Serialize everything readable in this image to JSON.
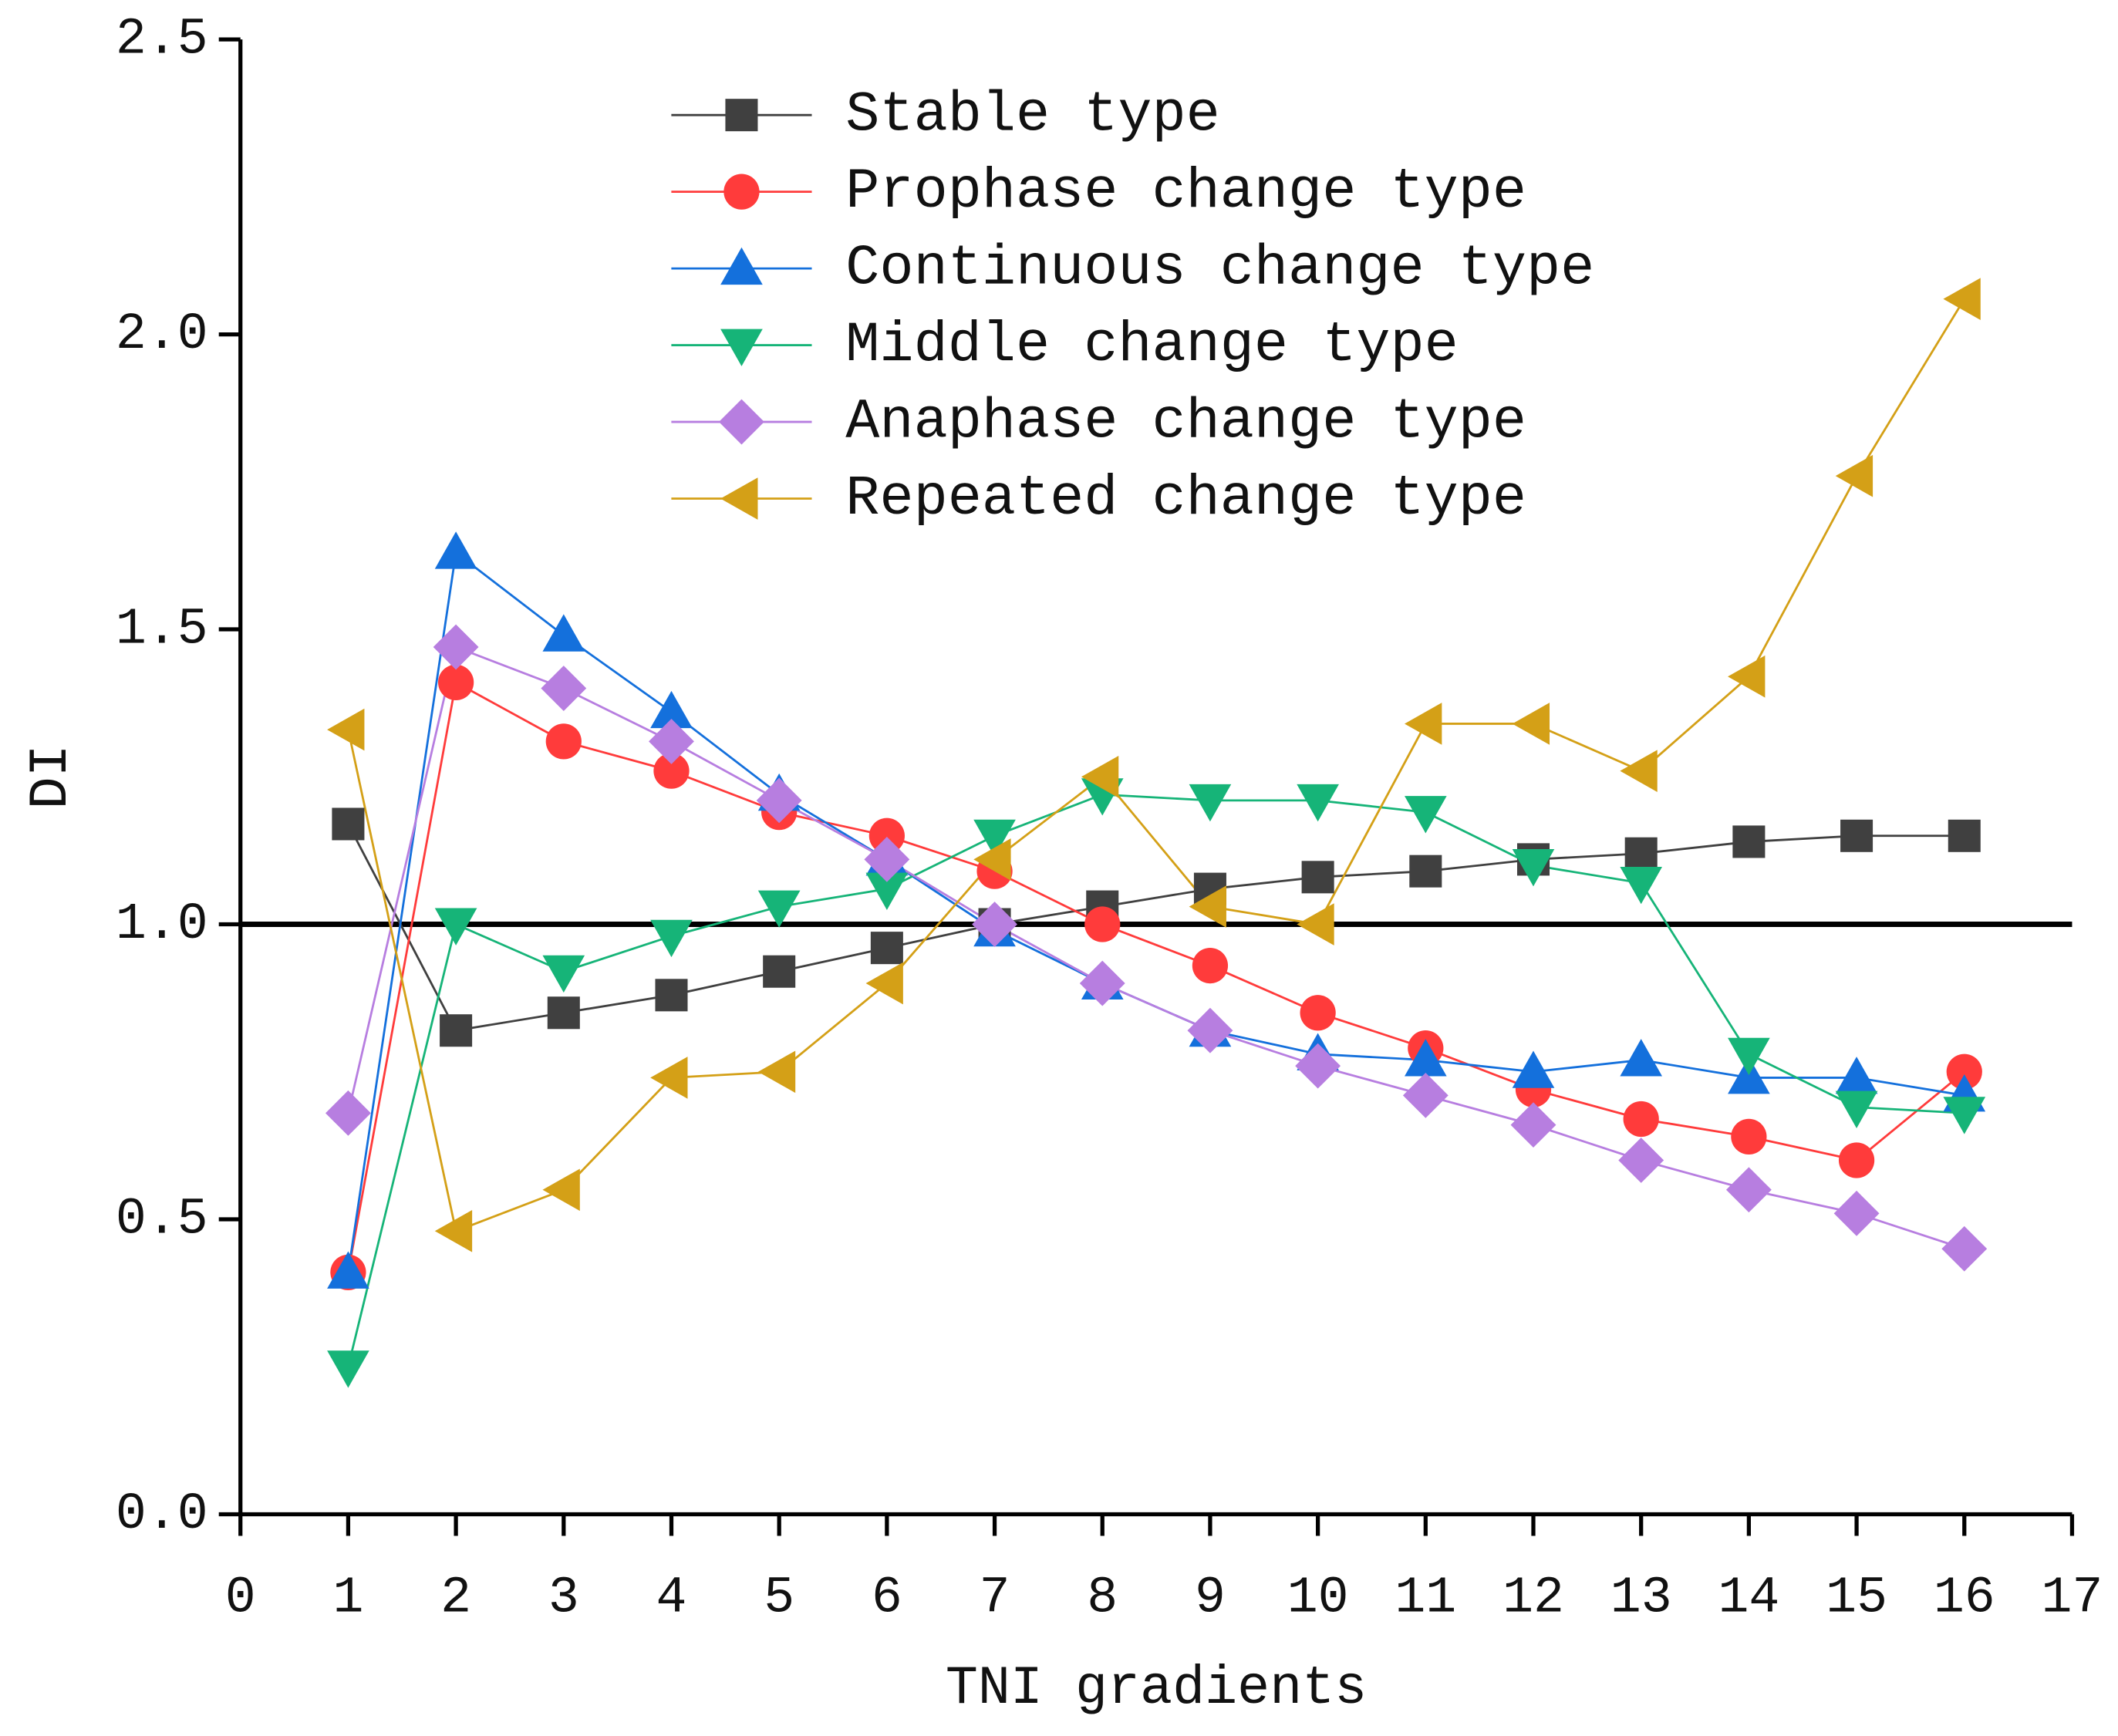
{
  "chart_data": {
    "type": "line",
    "x_label": "TNI gradients",
    "y_label": "DI",
    "x": [
      1,
      2,
      3,
      4,
      5,
      6,
      7,
      8,
      9,
      10,
      11,
      12,
      13,
      14,
      15,
      16
    ],
    "xlim": [
      0,
      17
    ],
    "xticks": [
      0,
      1,
      2,
      3,
      4,
      5,
      6,
      7,
      8,
      9,
      10,
      11,
      12,
      13,
      14,
      15,
      16,
      17
    ],
    "ylim": [
      0,
      2.5
    ],
    "yticks": [
      {
        "value": 0,
        "label": "0.0"
      },
      0.5,
      {
        "value": 1,
        "label": "1.0"
      },
      1.5,
      {
        "value": 2,
        "label": "2.0"
      },
      2.5
    ],
    "hline": 1,
    "grid": false,
    "legend": "upper center",
    "series": [
      {
        "name": "Stable type",
        "color": "#404040",
        "marker": "square",
        "values": [
          1.17,
          0.82,
          0.85,
          0.88,
          0.92,
          0.96,
          1.0,
          1.03,
          1.06,
          1.08,
          1.09,
          1.11,
          1.12,
          1.14,
          1.15,
          1.15
        ]
      },
      {
        "name": "Prophase change type",
        "color": "#ff3b3b",
        "marker": "circle",
        "values": [
          0.41,
          1.41,
          1.31,
          1.26,
          1.19,
          1.15,
          1.09,
          1.0,
          0.93,
          0.85,
          0.79,
          0.72,
          0.67,
          0.64,
          0.6,
          0.75
        ]
      },
      {
        "name": "Continuous change type",
        "color": "#1470dc",
        "marker": "triangle-up",
        "values": [
          0.41,
          1.63,
          1.49,
          1.36,
          1.22,
          1.11,
          0.99,
          0.9,
          0.82,
          0.78,
          0.77,
          0.75,
          0.77,
          0.74,
          0.74,
          0.71
        ]
      },
      {
        "name": "Middle change type",
        "color": "#16b478",
        "marker": "triangle-down",
        "values": [
          0.25,
          1.0,
          0.92,
          0.98,
          1.03,
          1.06,
          1.15,
          1.22,
          1.21,
          1.21,
          1.19,
          1.1,
          1.07,
          0.78,
          0.69,
          0.68
        ]
      },
      {
        "name": "Anaphase change type",
        "color": "#b77ee0",
        "marker": "diamond",
        "values": [
          0.68,
          1.47,
          1.4,
          1.31,
          1.21,
          1.11,
          1.0,
          0.9,
          0.82,
          0.76,
          0.71,
          0.66,
          0.6,
          0.55,
          0.51,
          0.45
        ]
      },
      {
        "name": "Repeated change type",
        "color": "#d4a017",
        "marker": "triangle-left",
        "values": [
          1.33,
          0.48,
          0.55,
          0.74,
          0.75,
          0.9,
          1.11,
          1.25,
          1.03,
          1.0,
          1.34,
          1.34,
          1.26,
          1.42,
          1.76,
          2.06
        ]
      }
    ]
  }
}
